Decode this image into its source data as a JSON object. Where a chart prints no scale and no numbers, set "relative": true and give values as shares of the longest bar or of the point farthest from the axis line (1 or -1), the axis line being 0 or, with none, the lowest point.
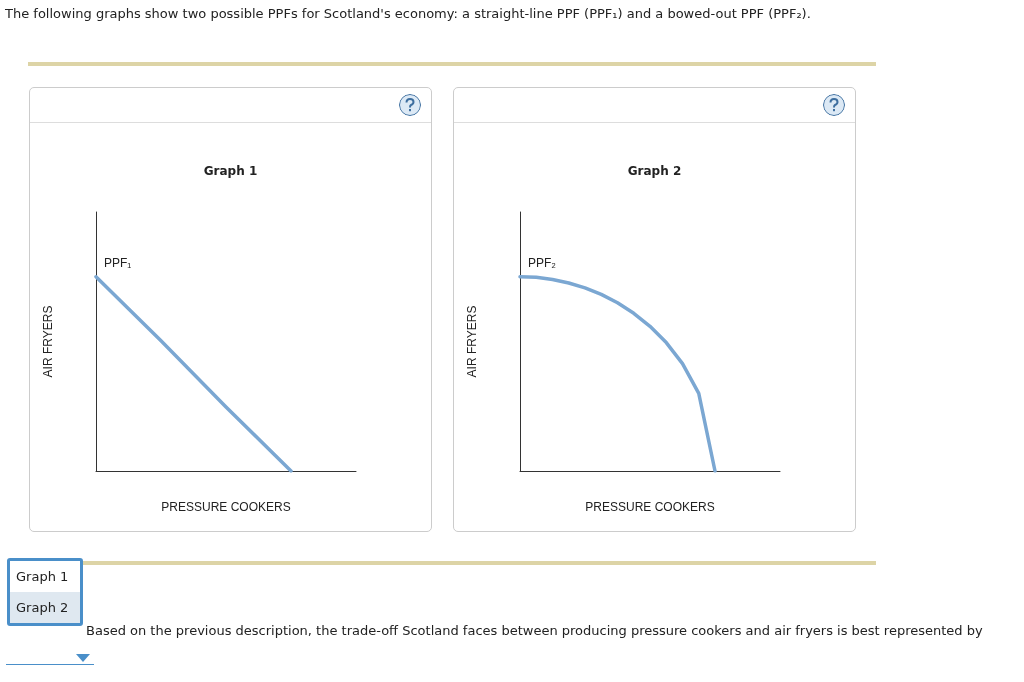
{
  "chart_data": [
    {
      "type": "line",
      "title": "Graph 1",
      "xlabel": "PRESSURE COOKERS",
      "ylabel": "AIR FRYERS",
      "relative": true,
      "marker": "none",
      "annotations": [
        "The following graphs show two possible PPFs for Scotland's economy: a straight-line PPF (PPF₁) and a bowed-out PPF (PPF₂)."
      ],
      "categories": [
        null,
        null,
        null,
        null,
        null
      ],
      "series": [
        {
          "name": "PPF₁",
          "color": "#7ba7d2",
          "values": [
            1,
            0.67,
            0.33,
            0,
            null
          ]
        }
      ]
    },
    {
      "type": "line",
      "title": "Graph 2",
      "xlabel": "PRESSURE COOKERS",
      "ylabel": "AIR FRYERS",
      "relative": true,
      "marker": "none",
      "annotations": [
        "Based on the previous description, the trade-off Scotland faces between producing pressure cookers and air fryers is best represented by",
        "Graph 1",
        "Graph 2"
      ],
      "categories": [
        null,
        null,
        null,
        null,
        null,
        null,
        null,
        null,
        null,
        null,
        null,
        null,
        null,
        null,
        null,
        null,
        null
      ],
      "series": [
        {
          "name": "PPF₂",
          "color": "#7ba7d2",
          "values": [
            1,
            0.997,
            0.986,
            0.968,
            0.943,
            0.909,
            0.866,
            0.812,
            0.745,
            0.661,
            0.553,
            0.4,
            0,
            null,
            null,
            null,
            null
          ]
        }
      ]
    }
  ]
}
